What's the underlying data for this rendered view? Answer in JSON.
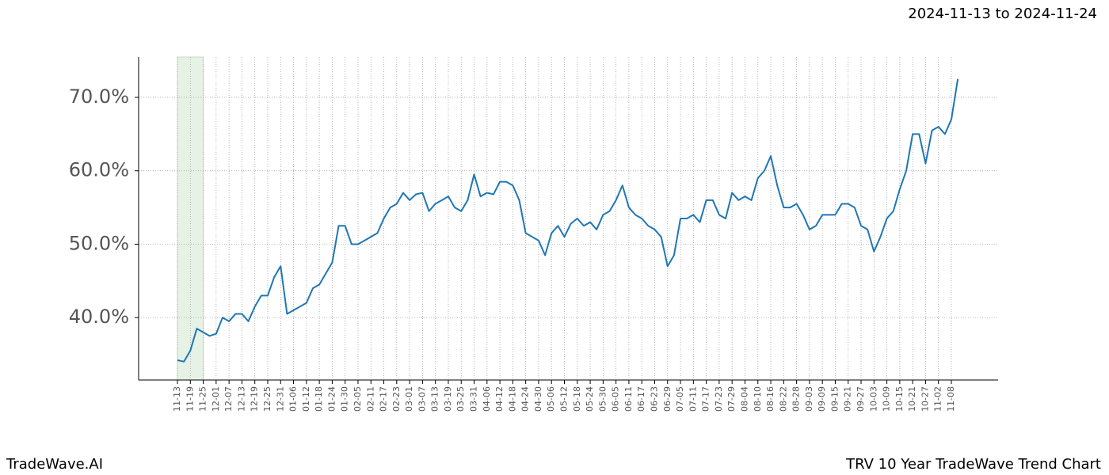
{
  "chart_data": {
    "type": "line",
    "title": "TRV 10 Year TradeWave Trend Chart",
    "subtitle": "2024-11-13 to 2024-11-24",
    "brand": "TradeWave.AI",
    "x": [
      "11-13",
      null,
      "11-19",
      null,
      "11-25",
      null,
      "12-01",
      null,
      "12-07",
      null,
      "12-13",
      null,
      "12-19",
      null,
      "12-25",
      null,
      "12-31",
      null,
      "01-06",
      null,
      "01-12",
      null,
      "01-18",
      null,
      "01-24",
      null,
      "01-30",
      null,
      "02-05",
      null,
      "02-11",
      null,
      "02-17",
      null,
      "02-23",
      null,
      "03-01",
      null,
      "03-07",
      null,
      "03-13",
      null,
      "03-19",
      null,
      "03-25",
      null,
      "03-31",
      null,
      "04-06",
      null,
      "04-12",
      null,
      "04-18",
      null,
      "04-24",
      null,
      "04-30",
      null,
      "05-06",
      null,
      "05-12",
      null,
      "05-18",
      null,
      "05-24",
      null,
      "05-30",
      null,
      "06-05",
      null,
      "06-11",
      null,
      "06-17",
      null,
      "06-23",
      null,
      "06-29",
      null,
      "07-05",
      null,
      "07-11",
      null,
      "07-17",
      null,
      "07-23",
      null,
      "07-29",
      null,
      "08-04",
      null,
      "08-10",
      null,
      "08-16",
      null,
      "08-22",
      null,
      "08-28",
      null,
      "09-03",
      null,
      "09-09",
      null,
      "09-15",
      null,
      "09-21",
      null,
      "09-27",
      null,
      "10-03",
      null,
      "10-09",
      null,
      "10-15",
      null,
      "10-21",
      null,
      "10-27",
      null,
      "11-02",
      null,
      "11-08",
      null
    ],
    "series": [
      {
        "color": "#1f77b4",
        "values": [
          34.2,
          34.0,
          35.5,
          38.5,
          38.0,
          37.5,
          37.8,
          40.0,
          39.5,
          40.5,
          40.5,
          39.5,
          41.5,
          43.0,
          43.0,
          45.5,
          47.0,
          40.5,
          41.0,
          41.5,
          42.0,
          44.0,
          44.5,
          46.0,
          47.5,
          52.5,
          52.5,
          50.0,
          50.0,
          50.5,
          51.0,
          51.5,
          53.5,
          55.0,
          55.5,
          57.0,
          56.0,
          56.8,
          57.0,
          54.5,
          55.5,
          56.0,
          56.5,
          55.0,
          54.5,
          56.0,
          59.5,
          56.5,
          57.0,
          56.8,
          58.5,
          58.5,
          58.0,
          56.0,
          51.5,
          51.0,
          50.5,
          48.5,
          51.5,
          52.5,
          51.0,
          52.8,
          53.5,
          52.5,
          53.0,
          52.0,
          54.0,
          54.5,
          56.0,
          58.0,
          55.0,
          54.0,
          53.5,
          52.5,
          52.0,
          51.0,
          47.0,
          48.5,
          53.5,
          53.5,
          54.0,
          53.0,
          56.0,
          56.0,
          54.0,
          53.5,
          57.0,
          56.0,
          56.5,
          56.0,
          59.0,
          60.0,
          62.0,
          58.0,
          55.0,
          55.0,
          55.5,
          54.0,
          52.0,
          52.5,
          54.0,
          54.0,
          54.0,
          55.5,
          55.5,
          55.0,
          52.5,
          52.0,
          49.0,
          51.0,
          53.5,
          54.5,
          57.5,
          60.0,
          65.0,
          65.0,
          61.0,
          65.5,
          66.0,
          65.0,
          67.0,
          72.5
        ]
      }
    ],
    "highlight": [
      "11-13",
      "11-25"
    ],
    "highlight_color": "#e6f2e6",
    "ylim": [
      31.5,
      75.5
    ],
    "yticks": [
      {
        "value": 40,
        "label": "40.0%"
      },
      {
        "value": 50,
        "label": "50.0%"
      },
      {
        "value": 60,
        "label": "60.0%"
      },
      {
        "value": 70,
        "label": "70.0%"
      }
    ],
    "grid": true
  }
}
